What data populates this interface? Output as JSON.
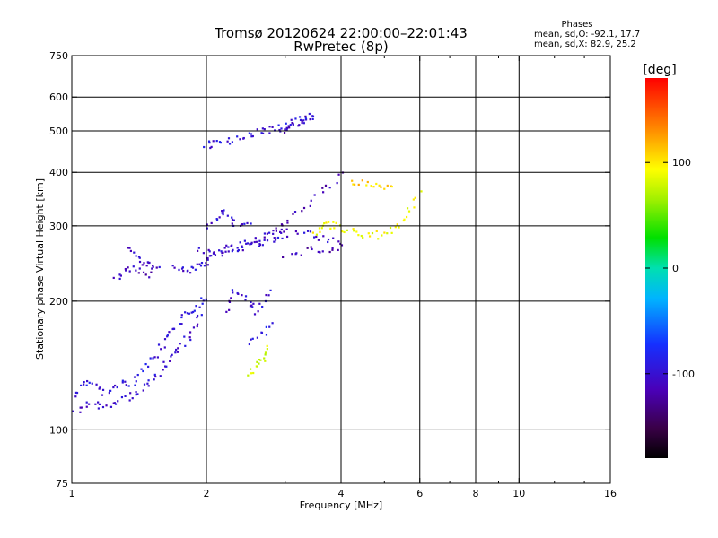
{
  "chart_data": {
    "type": "scatter",
    "title": "Tromsø 20120624 22:00:00–22:01:43",
    "subtitle": "RwPretec (8p)",
    "xlabel": "Frequency [MHz]",
    "ylabel": "Stationary phase Virtual Height [km]",
    "x_scale": "log",
    "y_scale": "log",
    "xlim": [
      1,
      16
    ],
    "ylim": [
      75,
      750
    ],
    "x_ticks": [
      1,
      2,
      4,
      6,
      8,
      10,
      16
    ],
    "y_ticks": [
      75,
      100,
      200,
      300,
      400,
      500,
      600,
      750
    ],
    "x_gridlines": [
      2,
      4,
      6,
      8,
      10
    ],
    "y_gridlines": [
      100,
      200,
      300,
      400,
      500,
      600
    ],
    "x_minor_ticks": [
      3,
      5,
      7,
      9,
      12,
      14
    ],
    "phase_summary": {
      "heading": "Phases",
      "line_o": "mean, sd,O: -92.1, 17.7",
      "line_x": "mean, sd,X:  82.9, 25.2"
    },
    "colorbar": {
      "label": "[deg]",
      "min": -180,
      "max": 180,
      "ticks": [
        100,
        0,
        -100
      ],
      "tick_labels": [
        "100",
        "0",
        "-100"
      ]
    },
    "series": [
      {
        "traces": [
          {
            "phase": -95,
            "points": [
              [
                1.02,
                120
              ],
              [
                1.05,
                126
              ],
              [
                1.08,
                130
              ],
              [
                1.12,
                128
              ],
              [
                1.15,
                124
              ],
              [
                1.2,
                122
              ],
              [
                1.25,
                125
              ],
              [
                1.3,
                130
              ],
              [
                1.35,
                128
              ],
              [
                1.4,
                132
              ],
              [
                1.45,
                138
              ],
              [
                1.5,
                145
              ],
              [
                1.55,
                150
              ],
              [
                1.6,
                158
              ],
              [
                1.65,
                165
              ],
              [
                1.7,
                172
              ],
              [
                1.75,
                178
              ],
              [
                1.8,
                185
              ],
              [
                1.85,
                190
              ],
              [
                1.9,
                195
              ],
              [
                1.95,
                200
              ],
              [
                2.0,
                205
              ]
            ]
          },
          {
            "phase": -100,
            "points": [
              [
                1.02,
                110
              ],
              [
                1.05,
                112
              ],
              [
                1.1,
                116
              ],
              [
                1.15,
                114
              ],
              [
                1.2,
                112
              ],
              [
                1.25,
                115
              ],
              [
                1.3,
                118
              ],
              [
                1.35,
                120
              ],
              [
                1.4,
                122
              ],
              [
                1.45,
                126
              ],
              [
                1.5,
                130
              ],
              [
                1.55,
                134
              ],
              [
                1.6,
                140
              ],
              [
                1.65,
                145
              ],
              [
                1.7,
                150
              ],
              [
                1.75,
                156
              ],
              [
                1.8,
                162
              ],
              [
                1.85,
                170
              ],
              [
                1.9,
                178
              ],
              [
                1.95,
                186
              ]
            ]
          },
          {
            "phase": -105,
            "points": [
              [
                1.35,
                265
              ],
              [
                1.38,
                258
              ],
              [
                1.42,
                250
              ],
              [
                1.45,
                245
              ],
              [
                1.48,
                242
              ],
              [
                1.52,
                240
              ],
              [
                1.55,
                243
              ]
            ]
          },
          {
            "phase": -110,
            "points": [
              [
                1.25,
                225
              ],
              [
                1.3,
                232
              ],
              [
                1.35,
                240
              ],
              [
                1.4,
                238
              ],
              [
                1.45,
                232
              ],
              [
                1.5,
                228
              ]
            ]
          },
          {
            "phase": -100,
            "points": [
              [
                1.7,
                240
              ],
              [
                1.75,
                238
              ],
              [
                1.8,
                236
              ],
              [
                1.85,
                238
              ],
              [
                1.9,
                240
              ],
              [
                1.95,
                244
              ],
              [
                2.0,
                248
              ],
              [
                2.05,
                252
              ],
              [
                2.1,
                256
              ],
              [
                2.15,
                260
              ],
              [
                2.2,
                262
              ],
              [
                2.3,
                265
              ],
              [
                2.4,
                268
              ],
              [
                2.5,
                270
              ],
              [
                2.6,
                272
              ],
              [
                2.7,
                274
              ],
              [
                2.8,
                276
              ],
              [
                2.9,
                278
              ],
              [
                3.0,
                280
              ]
            ]
          },
          {
            "phase": -105,
            "points": [
              [
                1.9,
                262
              ],
              [
                2.0,
                260
              ],
              [
                2.1,
                262
              ],
              [
                2.2,
                265
              ],
              [
                2.3,
                268
              ],
              [
                2.4,
                272
              ],
              [
                2.5,
                276
              ],
              [
                2.6,
                280
              ],
              [
                2.7,
                284
              ],
              [
                2.8,
                288
              ],
              [
                2.9,
                290
              ],
              [
                3.0,
                292
              ],
              [
                3.2,
                290
              ],
              [
                3.4,
                286
              ],
              [
                3.6,
                282
              ],
              [
                3.8,
                278
              ],
              [
                4.0,
                275
              ]
            ]
          },
          {
            "phase": -100,
            "points": [
              [
                2.0,
                300
              ],
              [
                2.1,
                310
              ],
              [
                2.15,
                320
              ],
              [
                2.2,
                326
              ],
              [
                2.25,
                318
              ],
              [
                2.3,
                305
              ],
              [
                2.4,
                300
              ],
              [
                2.5,
                298
              ]
            ]
          },
          {
            "phase": -115,
            "points": [
              [
                3.0,
                255
              ],
              [
                3.2,
                260
              ],
              [
                3.4,
                262
              ],
              [
                3.6,
                264
              ],
              [
                3.8,
                266
              ],
              [
                4.0,
                268
              ]
            ]
          },
          {
            "phase": -95,
            "points": [
              [
                2.0,
                460
              ],
              [
                2.05,
                465
              ],
              [
                2.1,
                470
              ],
              [
                2.2,
                472
              ],
              [
                2.3,
                478
              ],
              [
                2.4,
                485
              ],
              [
                2.5,
                490
              ],
              [
                2.6,
                495
              ],
              [
                2.7,
                500
              ],
              [
                2.8,
                505
              ],
              [
                2.9,
                510
              ],
              [
                3.0,
                515
              ],
              [
                3.1,
                520
              ],
              [
                3.2,
                528
              ],
              [
                3.3,
                535
              ],
              [
                3.4,
                540
              ],
              [
                3.5,
                548
              ]
            ]
          },
          {
            "phase": -110,
            "points": [
              [
                2.9,
                500
              ],
              [
                3.0,
                505
              ],
              [
                3.1,
                512
              ],
              [
                3.2,
                520
              ],
              [
                3.3,
                530
              ],
              [
                3.4,
                540
              ]
            ]
          },
          {
            "phase": -115,
            "points": [
              [
                2.9,
                300
              ],
              [
                3.0,
                305
              ],
              [
                3.2,
                318
              ],
              [
                3.4,
                335
              ],
              [
                3.6,
                355
              ],
              [
                3.8,
                375
              ],
              [
                4.0,
                395
              ]
            ]
          },
          {
            "phase": -100,
            "points": [
              [
                2.2,
                190
              ],
              [
                2.25,
                200
              ],
              [
                2.3,
                210
              ],
              [
                2.4,
                205
              ],
              [
                2.5,
                200
              ],
              [
                2.55,
                195
              ],
              [
                2.6,
                190
              ],
              [
                2.7,
                200
              ],
              [
                2.8,
                210
              ]
            ]
          },
          {
            "phase": -90,
            "points": [
              [
                2.5,
                160
              ],
              [
                2.6,
                165
              ],
              [
                2.7,
                170
              ],
              [
                2.8,
                175
              ]
            ]
          },
          {
            "phase": 80,
            "points": [
              [
                2.5,
                135
              ],
              [
                2.55,
                138
              ],
              [
                2.6,
                142
              ],
              [
                2.65,
                146
              ],
              [
                2.7,
                150
              ],
              [
                2.75,
                155
              ]
            ]
          },
          {
            "phase": 90,
            "points": [
              [
                3.5,
                290
              ],
              [
                3.6,
                295
              ],
              [
                3.7,
                300
              ],
              [
                3.8,
                302
              ],
              [
                3.9,
                298
              ],
              [
                4.0,
                295
              ],
              [
                4.2,
                290
              ],
              [
                4.4,
                285
              ],
              [
                4.6,
                282
              ],
              [
                4.8,
                285
              ],
              [
                5.0,
                290
              ],
              [
                5.2,
                296
              ],
              [
                5.4,
                305
              ],
              [
                5.6,
                318
              ],
              [
                5.8,
                335
              ],
              [
                6.0,
                355
              ]
            ]
          },
          {
            "phase": 110,
            "points": [
              [
                4.2,
                380
              ],
              [
                4.4,
                378
              ],
              [
                4.6,
                375
              ],
              [
                4.8,
                372
              ],
              [
                5.0,
                370
              ],
              [
                5.2,
                372
              ]
            ]
          }
        ]
      }
    ]
  }
}
